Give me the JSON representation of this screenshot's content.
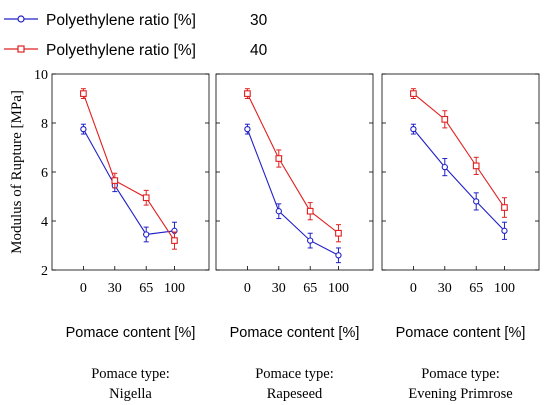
{
  "legend": [
    {
      "label": "Polyethylene ratio [%]",
      "value": "30",
      "color": "#2020c8",
      "marker": "circle"
    },
    {
      "label": "Polyethylene ratio [%]",
      "value": "40",
      "color": "#e02020",
      "marker": "square"
    }
  ],
  "shared": {
    "ylabel": "Modulus of Rupture [MPa]",
    "xlabel": "Pomace content [%]",
    "panel_title_prefix": "Pomace type:",
    "yticks": [
      "2",
      "4",
      "6",
      "8",
      "10"
    ]
  },
  "chart_data": [
    {
      "type": "line",
      "title": "Nigella",
      "categories": [
        "0",
        "30",
        "65",
        "100"
      ],
      "ylim": [
        2,
        10
      ],
      "series": [
        {
          "name": "30",
          "values": [
            7.75,
            5.45,
            3.45,
            3.6
          ],
          "errors": [
            0.2,
            0.25,
            0.3,
            0.35
          ]
        },
        {
          "name": "40",
          "values": [
            9.2,
            5.65,
            4.95,
            3.2
          ],
          "errors": [
            0.2,
            0.3,
            0.3,
            0.35
          ]
        }
      ]
    },
    {
      "type": "line",
      "title": "Rapeseed",
      "categories": [
        "0",
        "30",
        "65",
        "100"
      ],
      "ylim": [
        2,
        10
      ],
      "series": [
        {
          "name": "30",
          "values": [
            7.75,
            4.4,
            3.2,
            2.6
          ],
          "errors": [
            0.2,
            0.3,
            0.3,
            0.3
          ]
        },
        {
          "name": "40",
          "values": [
            9.2,
            6.55,
            4.4,
            3.5
          ],
          "errors": [
            0.2,
            0.35,
            0.35,
            0.35
          ]
        }
      ]
    },
    {
      "type": "line",
      "title": "Evening Primrose",
      "categories": [
        "0",
        "30",
        "65",
        "100"
      ],
      "ylim": [
        2,
        10
      ],
      "series": [
        {
          "name": "30",
          "values": [
            7.75,
            6.2,
            4.8,
            3.6
          ],
          "errors": [
            0.2,
            0.35,
            0.35,
            0.35
          ]
        },
        {
          "name": "40",
          "values": [
            9.2,
            8.15,
            6.25,
            4.55
          ],
          "errors": [
            0.2,
            0.35,
            0.35,
            0.4
          ]
        }
      ]
    }
  ]
}
